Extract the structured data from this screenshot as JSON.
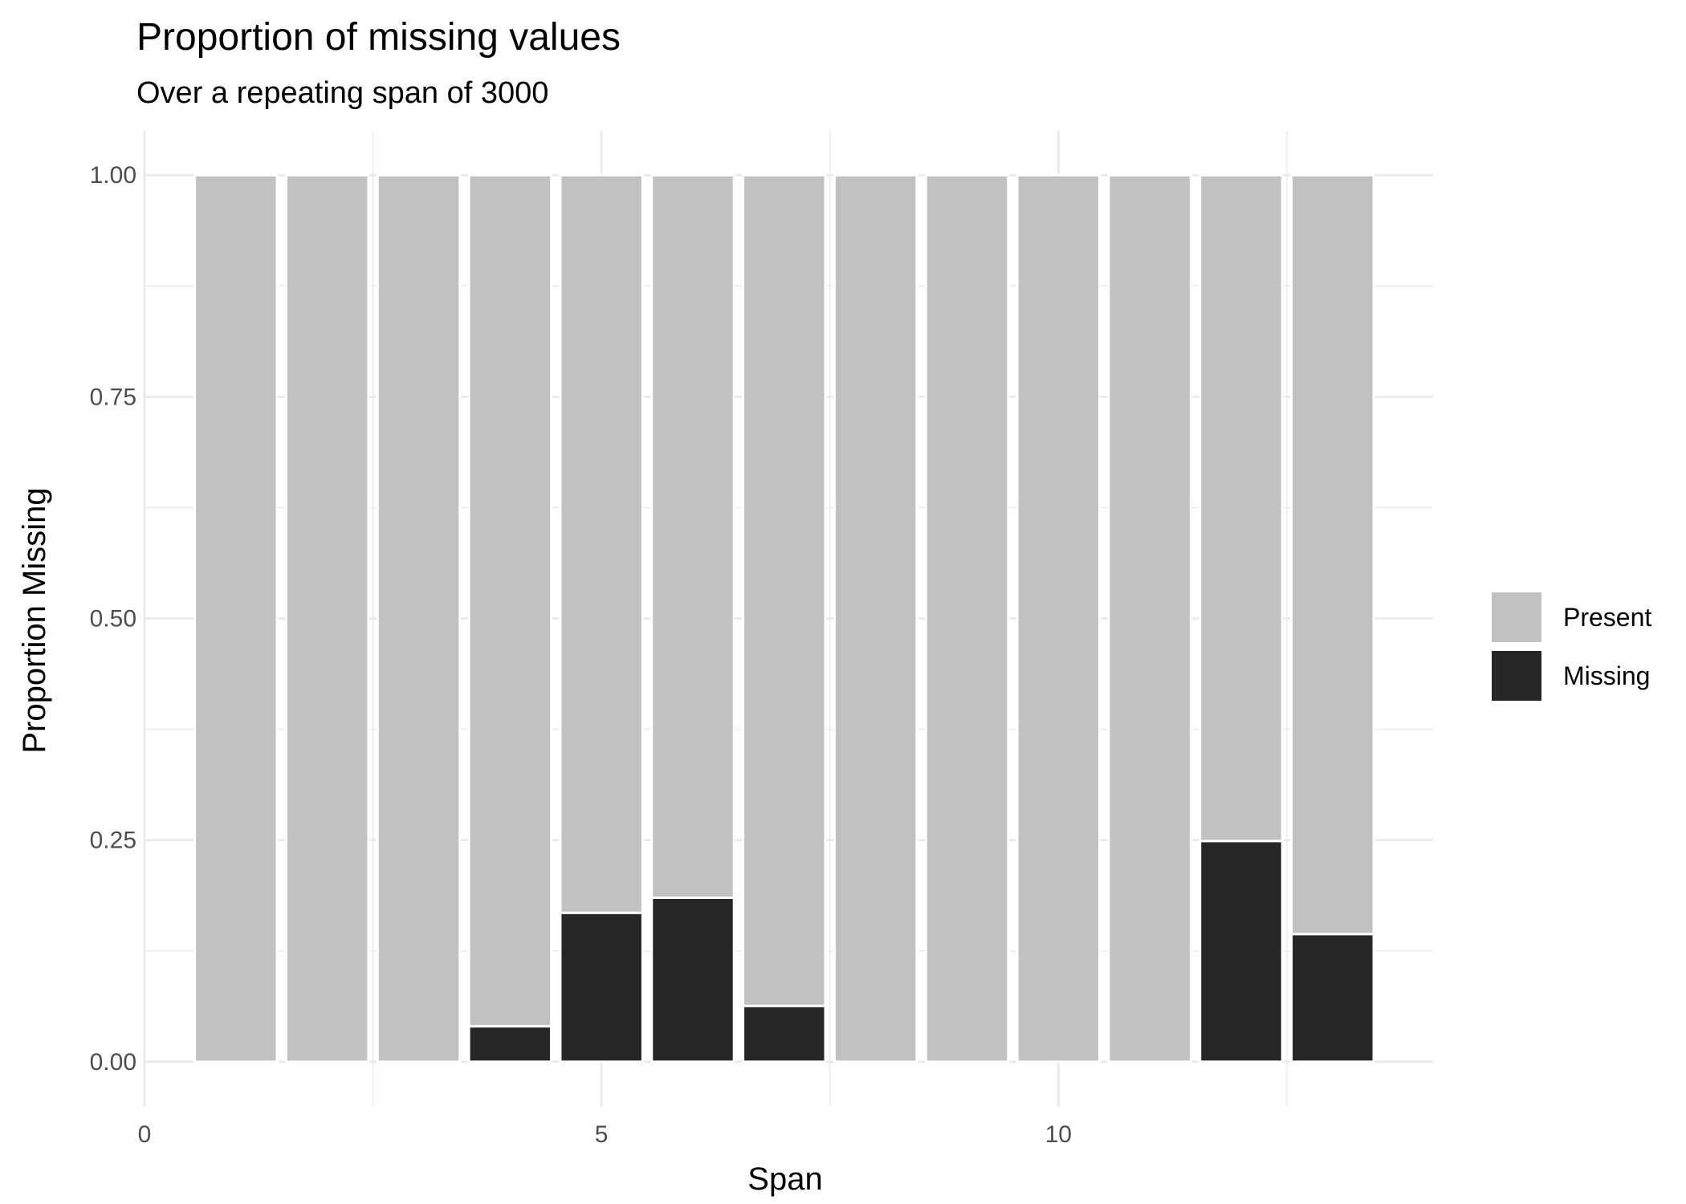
{
  "chart_data": {
    "type": "bar",
    "stacked": true,
    "title": "Proportion of missing values",
    "subtitle": "Over a repeating span of 3000",
    "xlabel": "Span",
    "ylabel": "Proportion Missing",
    "x": [
      1,
      2,
      3,
      4,
      5,
      6,
      7,
      8,
      9,
      10,
      11,
      12,
      13
    ],
    "series": [
      {
        "name": "Missing",
        "color": "#262626",
        "values": [
          0,
          0,
          0,
          0.04,
          0.168,
          0.185,
          0.063,
          0,
          0,
          0,
          0,
          0.249,
          0.144
        ]
      },
      {
        "name": "Present",
        "color": "#c1c1c1",
        "values": [
          1,
          1,
          1,
          0.96,
          0.832,
          0.815,
          0.937,
          1,
          1,
          1,
          1,
          0.751,
          0.856
        ]
      }
    ],
    "xlim": [
      0,
      14.1
    ],
    "ylim": [
      -0.05,
      1.05
    ],
    "x_ticks": [
      0,
      5,
      10
    ],
    "x_tick_labels": [
      "0",
      "5",
      "10"
    ],
    "y_ticks": [
      0,
      0.25,
      0.5,
      0.75,
      1
    ],
    "y_tick_labels": [
      "0.00",
      "0.25",
      "0.50",
      "0.75",
      "1.00"
    ],
    "grid": true,
    "legend": {
      "position": "right",
      "entries": [
        {
          "label": "Present",
          "color": "#c1c1c1"
        },
        {
          "label": "Missing",
          "color": "#262626"
        }
      ]
    }
  }
}
